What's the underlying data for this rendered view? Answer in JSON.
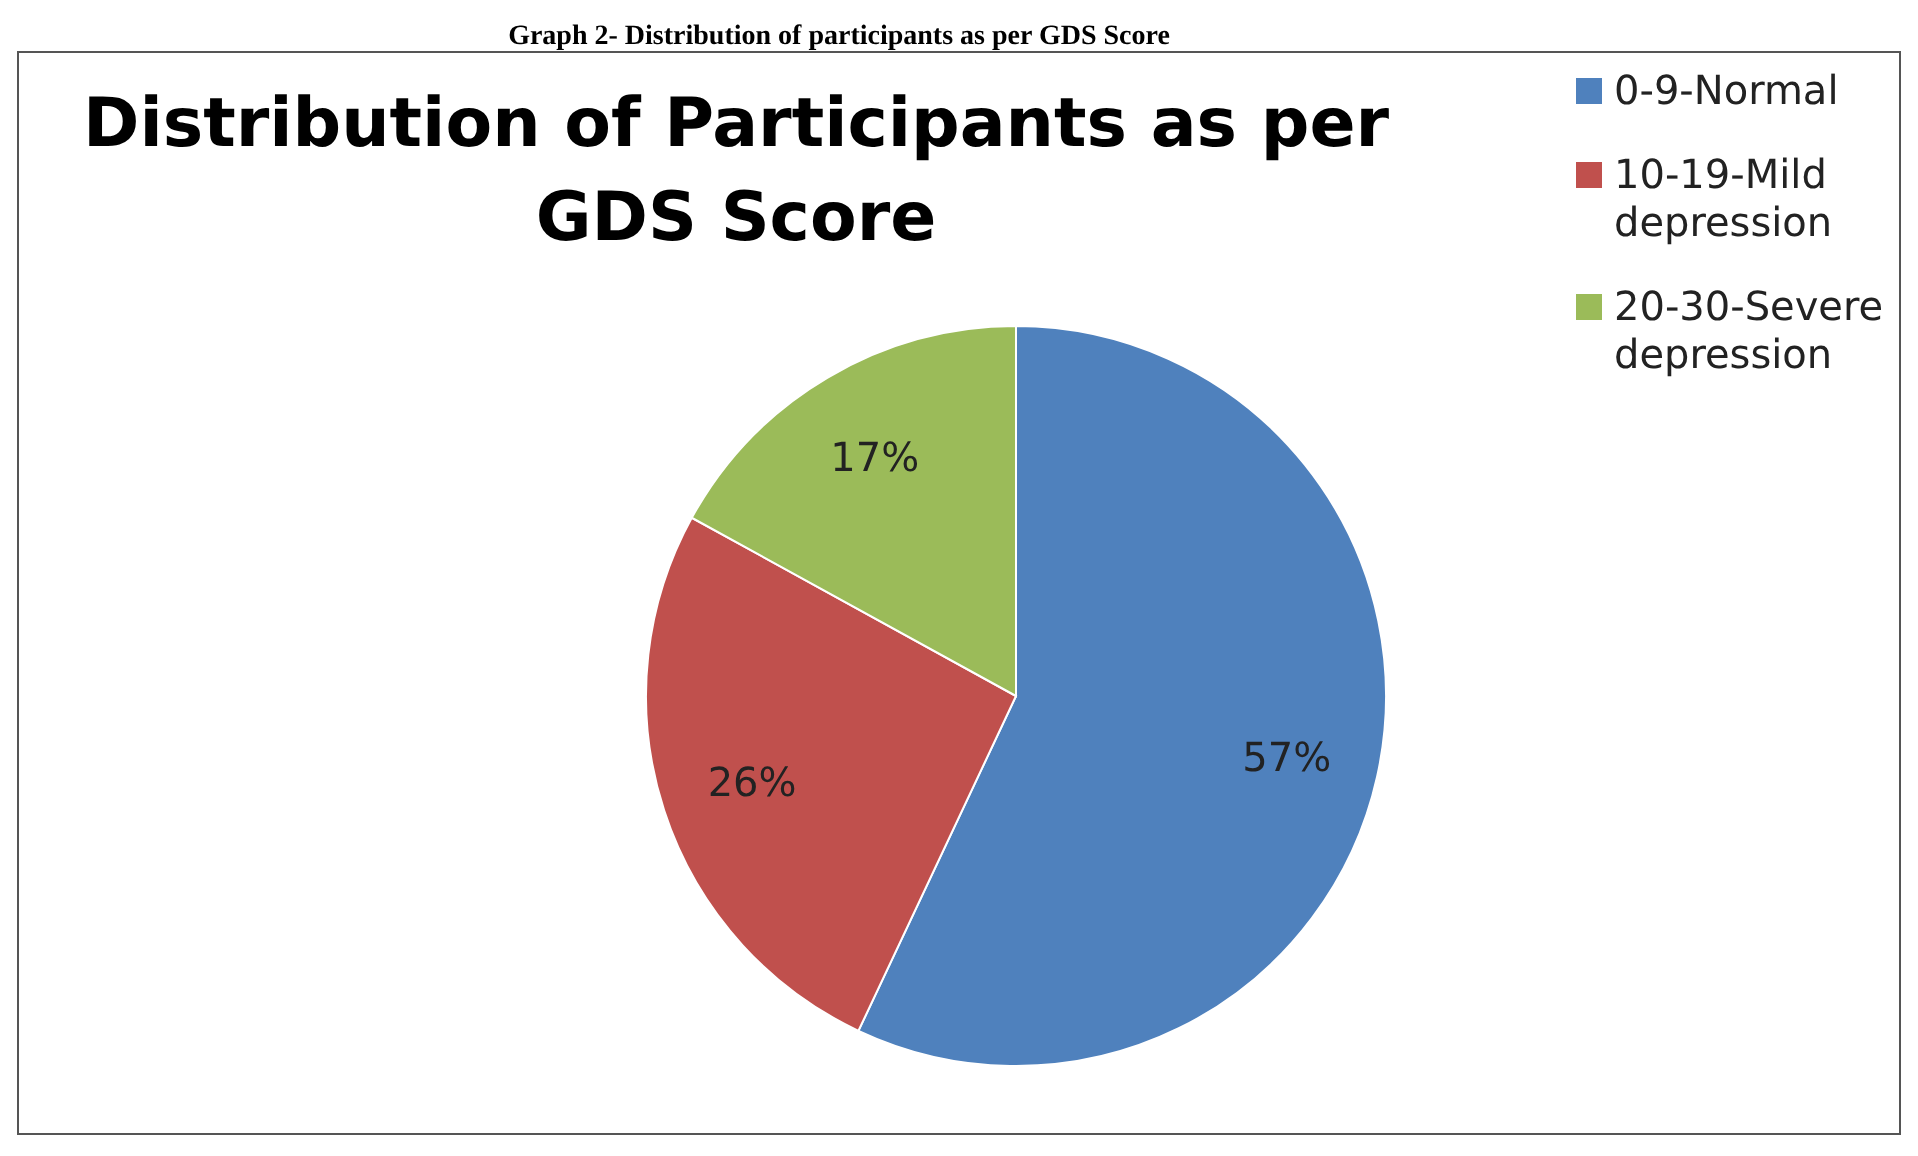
{
  "chart_data": {
    "type": "pie",
    "title": "Distribution of Participants as per GDS Score",
    "annotations": [
      "Graph 2- Distribution of participants as per GDS Score"
    ],
    "categories": [
      "0-9-Normal",
      "10-19-Mild depression",
      "20-30-Severe depression"
    ],
    "values": [
      57,
      26,
      17
    ],
    "colors": [
      "#4f81bd",
      "#c0504d",
      "#9bbb59"
    ],
    "value_labels": [
      "57%",
      "26%",
      "17%"
    ],
    "legend": "right"
  }
}
